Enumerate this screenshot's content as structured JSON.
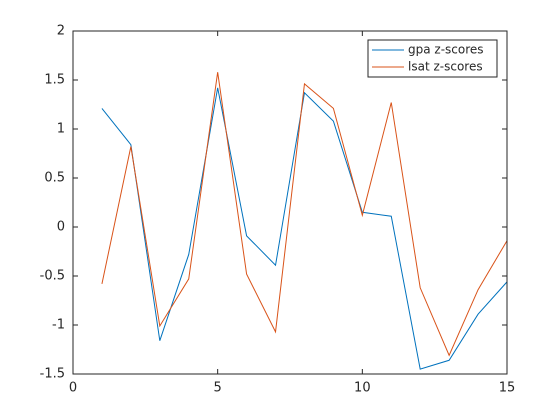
{
  "chart_data": {
    "type": "line",
    "x": [
      1,
      2,
      3,
      4,
      5,
      6,
      7,
      8,
      9,
      10,
      11,
      12,
      13,
      14,
      15
    ],
    "series": [
      {
        "name": "gpa z-scores",
        "color": "#0072bd",
        "values": [
          1.21,
          0.84,
          -1.16,
          -0.28,
          1.42,
          -0.09,
          -0.39,
          1.37,
          1.08,
          0.15,
          0.11,
          -1.45,
          -1.36,
          -0.89,
          -0.56
        ]
      },
      {
        "name": "lsat z-scores",
        "color": "#d95319",
        "values": [
          -0.58,
          0.82,
          -1.01,
          -0.53,
          1.58,
          -0.48,
          -1.07,
          1.46,
          1.21,
          0.12,
          1.27,
          -0.62,
          -1.31,
          -0.64,
          -0.14
        ]
      }
    ],
    "xlim": [
      0,
      15
    ],
    "xticks": [
      0,
      5,
      10,
      15
    ],
    "ylim": [
      -1.5,
      2
    ],
    "yticks": [
      -1.5,
      -1,
      -0.5,
      0,
      0.5,
      1,
      1.5,
      2
    ],
    "legend": "northeast"
  }
}
